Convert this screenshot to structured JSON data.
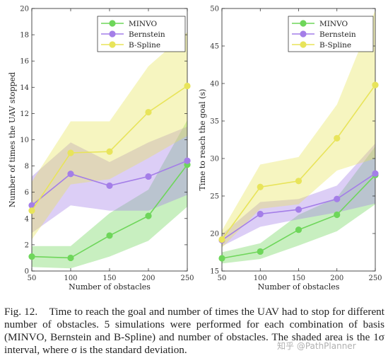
{
  "chart_data": [
    {
      "type": "line",
      "ylabel": "Number of times the UAV stopped",
      "xlabel": "Number of obstacles",
      "x": [
        50,
        100,
        150,
        200,
        250
      ],
      "xticks": [
        50,
        100,
        150,
        200,
        250
      ],
      "ylim": [
        0,
        20
      ],
      "yticks": [
        0,
        2,
        4,
        6,
        8,
        10,
        12,
        14,
        16,
        18,
        20
      ],
      "legend_position": "top-right",
      "series": [
        {
          "name": "MINVO",
          "color": "#6ed65a",
          "values": [
            1.1,
            1.0,
            2.7,
            4.2,
            8.1
          ],
          "lower": [
            0.3,
            0.2,
            1.1,
            2.3,
            4.9
          ],
          "upper": [
            1.9,
            1.9,
            4.4,
            6.2,
            11.5
          ]
        },
        {
          "name": "Bernstein",
          "color": "#a47ee8",
          "values": [
            5.0,
            7.4,
            6.5,
            7.2,
            8.4
          ],
          "lower": [
            2.9,
            5.0,
            4.6,
            4.6,
            5.8
          ],
          "upper": [
            7.2,
            9.8,
            8.3,
            9.8,
            11.0
          ]
        },
        {
          "name": "B-Spline",
          "color": "#e8e45a",
          "values": [
            4.6,
            9.0,
            9.1,
            12.1,
            14.1
          ],
          "lower": [
            2.4,
            6.6,
            7.0,
            8.6,
            10.3
          ],
          "upper": [
            6.8,
            11.4,
            11.4,
            15.6,
            18.2
          ]
        }
      ]
    },
    {
      "type": "line",
      "ylabel": "Time to reach the goal (s)",
      "xlabel": "Number of obstacles",
      "x": [
        50,
        100,
        150,
        200,
        250
      ],
      "xticks": [
        50,
        100,
        150,
        200,
        250
      ],
      "ylim": [
        15,
        50
      ],
      "yticks": [
        15,
        20,
        25,
        30,
        35,
        40,
        45,
        50
      ],
      "legend_position": "top-right",
      "series": [
        {
          "name": "MINVO",
          "color": "#6ed65a",
          "values": [
            16.7,
            17.6,
            20.5,
            22.5,
            27.8
          ],
          "lower": [
            16.0,
            16.6,
            18.4,
            20.3,
            23.9
          ],
          "upper": [
            17.5,
            18.7,
            22.5,
            24.8,
            31.6
          ]
        },
        {
          "name": "Bernstein",
          "color": "#a47ee8",
          "values": [
            19.1,
            22.6,
            23.2,
            24.6,
            28.0
          ],
          "lower": [
            18.3,
            20.9,
            21.9,
            22.8,
            24.0
          ],
          "upper": [
            19.9,
            24.2,
            24.6,
            26.4,
            32.0
          ]
        },
        {
          "name": "B-Spline",
          "color": "#e8e45a",
          "values": [
            19.2,
            26.2,
            27.0,
            32.7,
            39.8
          ],
          "lower": [
            18.1,
            23.3,
            23.9,
            28.4,
            30.0
          ],
          "upper": [
            20.4,
            29.2,
            30.2,
            37.2,
            49.8
          ]
        }
      ]
    }
  ],
  "caption": {
    "label": "Fig. 12.",
    "text": "Time to reach the goal and number of times the UAV had to stop for different number of obstacles. 5 simulations were performed for each combination of basis (MINVO, Bernstein and B-Spline) and number of obstacles. The shaded area is the 1σ interval, where σ is the standard deviation."
  },
  "watermark": "知乎 @PathPlanner"
}
